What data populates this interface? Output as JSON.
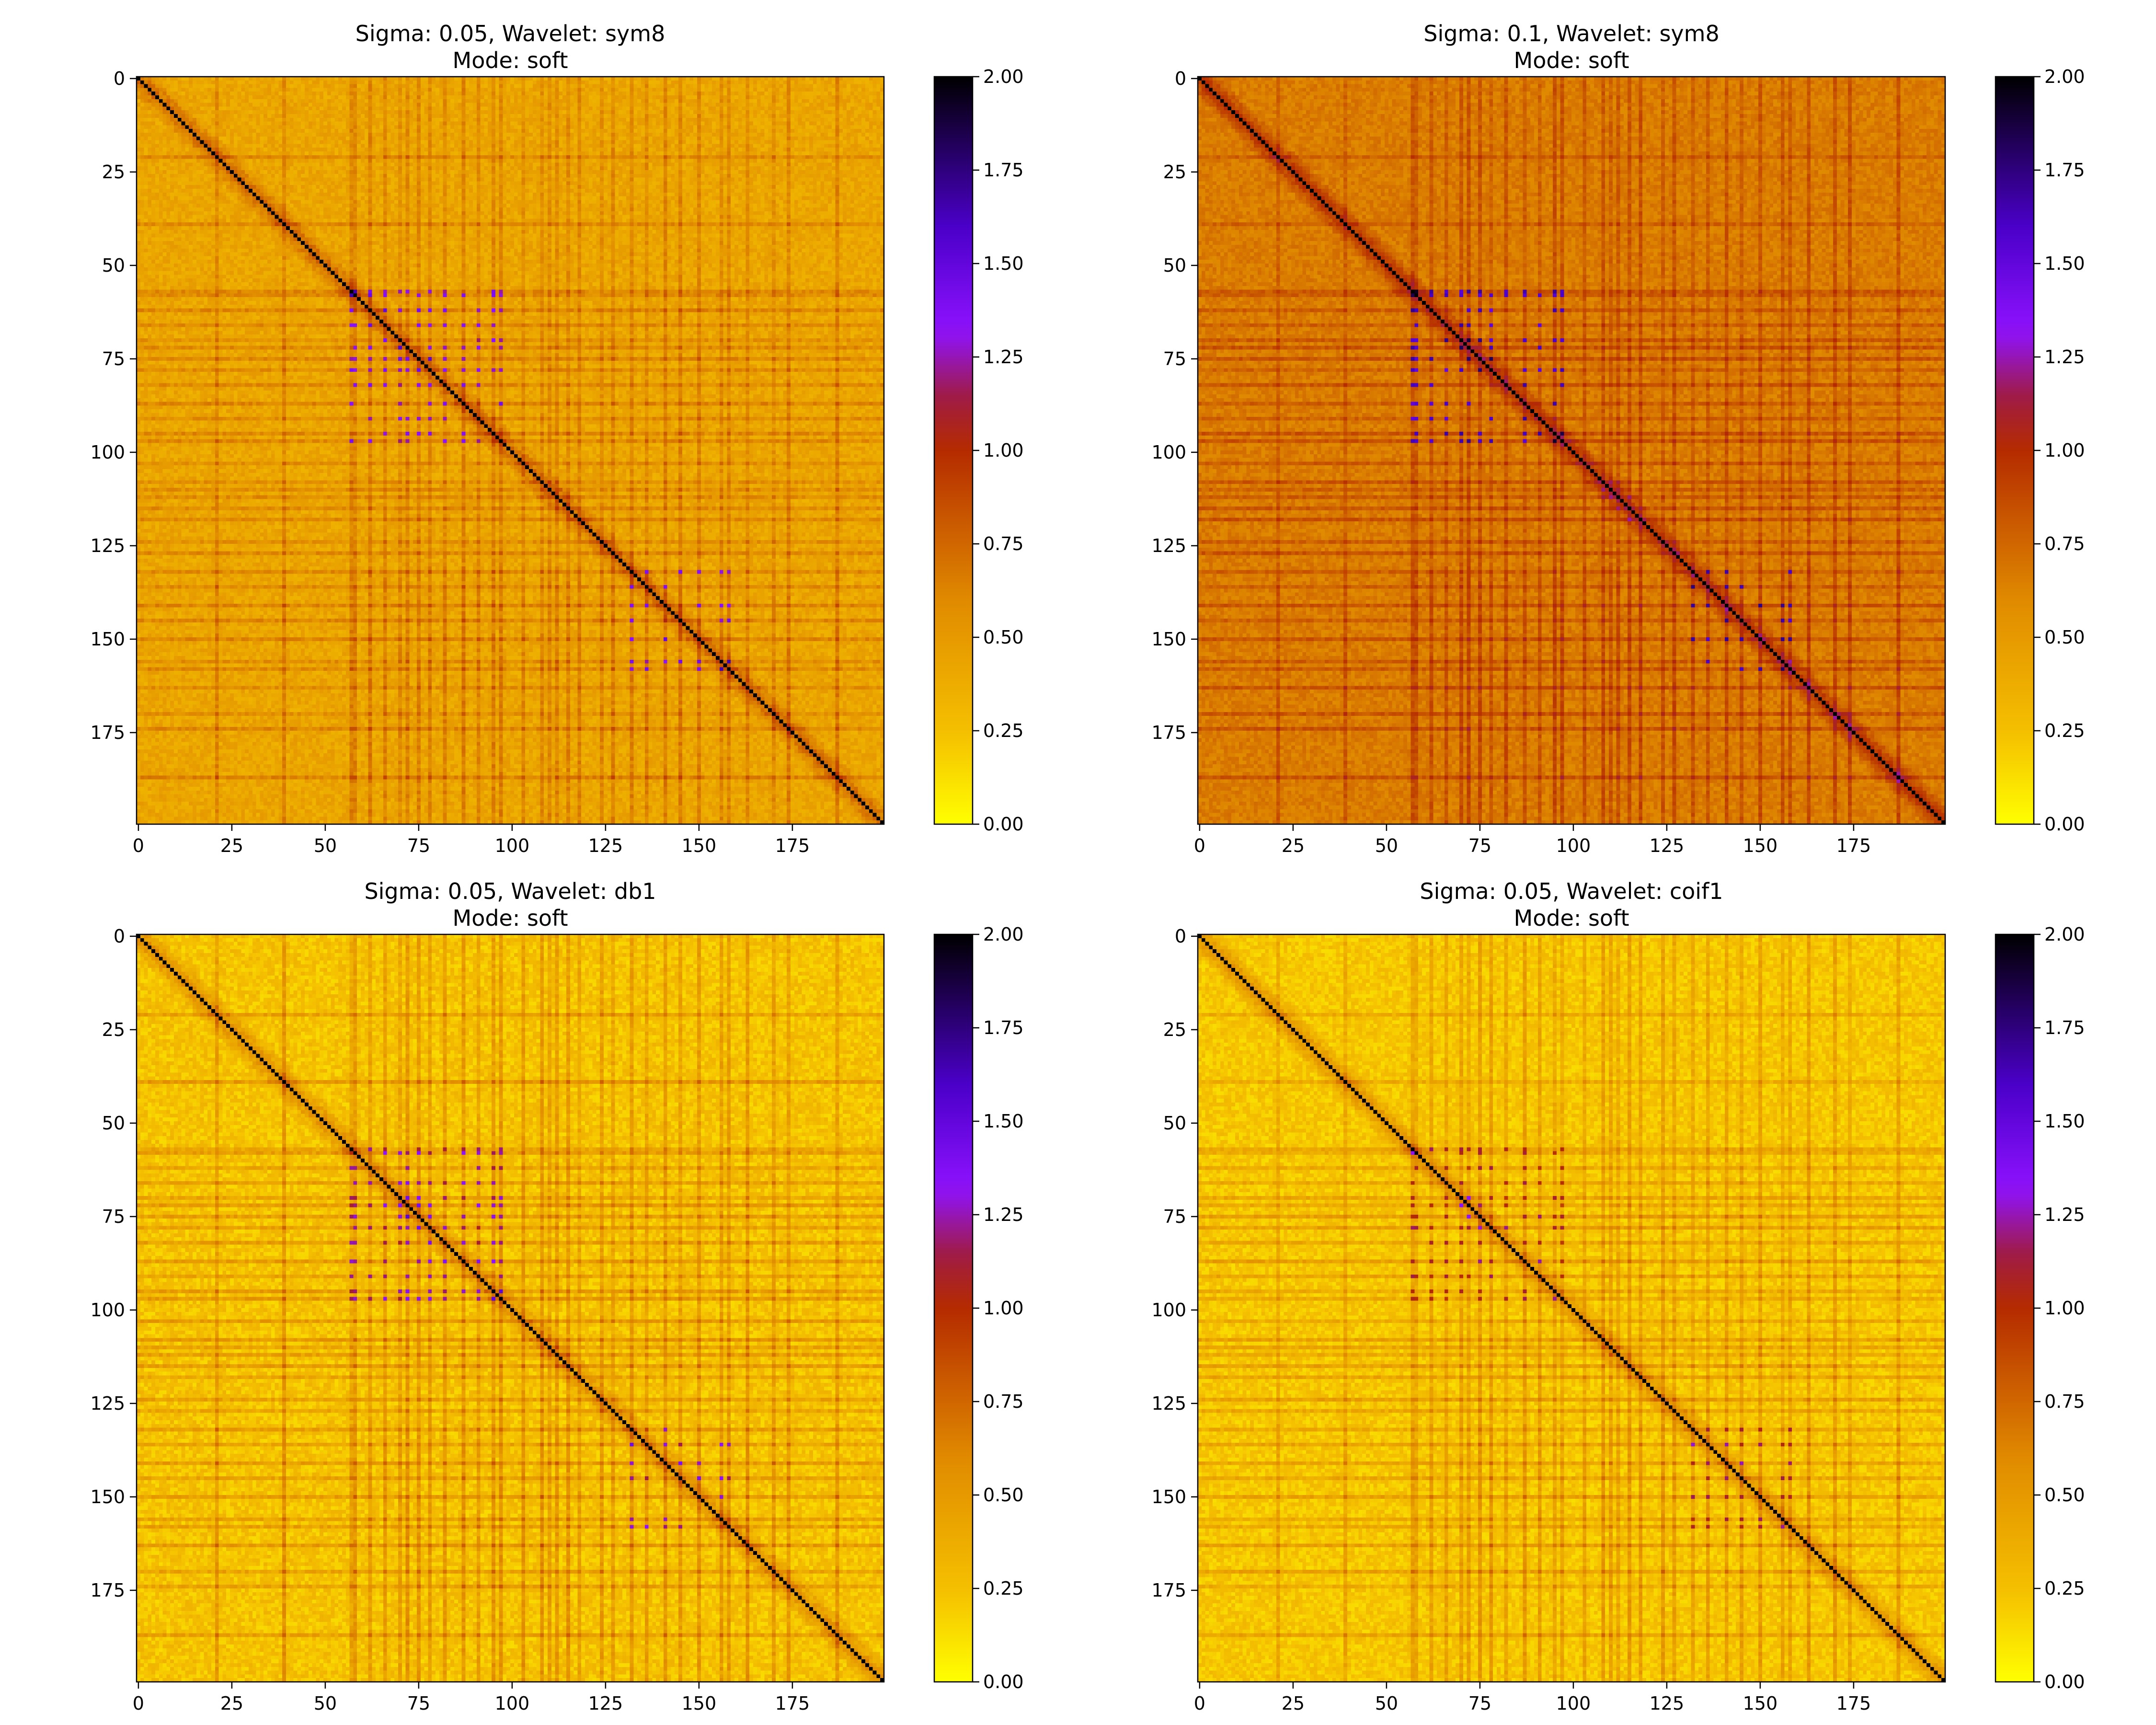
{
  "colormap": {
    "name": "gnuplot2_r",
    "stops": [
      {
        "v": 0.0,
        "c": "#ffff00"
      },
      {
        "v": 0.12,
        "c": "#f5c100"
      },
      {
        "v": 0.3,
        "c": "#e08a00"
      },
      {
        "v": 0.5,
        "c": "#b52b00"
      },
      {
        "v": 0.57,
        "c": "#a01c40"
      },
      {
        "v": 0.66,
        "c": "#8e12ff"
      },
      {
        "v": 0.8,
        "c": "#4a00c8"
      },
      {
        "v": 1.0,
        "c": "#000000"
      }
    ]
  },
  "chart_data": [
    {
      "type": "heatmap",
      "title_line1": "Sigma: 0.05, Wavelet: sym8",
      "title_line2": "Mode: soft",
      "size": 200,
      "xticks": [
        0,
        25,
        50,
        75,
        100,
        125,
        150,
        175
      ],
      "yticks": [
        0,
        25,
        50,
        75,
        100,
        125,
        150,
        175
      ],
      "clim": [
        0,
        2
      ],
      "colorbar_ticks": [
        "0.00",
        "0.25",
        "0.50",
        "0.75",
        "1.00",
        "1.25",
        "1.50",
        "1.75",
        "2.00"
      ],
      "diagonal_value": 2.0,
      "base_value": 0.42,
      "band_strength": 0.25,
      "cluster_strength": 0.55,
      "noise": 0.09,
      "seed": 11
    },
    {
      "type": "heatmap",
      "title_line1": "Sigma: 0.1, Wavelet: sym8",
      "title_line2": "Mode: soft",
      "size": 200,
      "xticks": [
        0,
        25,
        50,
        75,
        100,
        125,
        150,
        175
      ],
      "yticks": [
        0,
        25,
        50,
        75,
        100,
        125,
        150,
        175
      ],
      "clim": [
        0,
        2
      ],
      "colorbar_ticks": [
        "0.00",
        "0.25",
        "0.50",
        "0.75",
        "1.00",
        "1.25",
        "1.50",
        "1.75",
        "2.00"
      ],
      "diagonal_value": 2.0,
      "base_value": 0.66,
      "band_strength": 0.22,
      "cluster_strength": 0.65,
      "noise": 0.07,
      "seed": 23
    },
    {
      "type": "heatmap",
      "title_line1": "Sigma: 0.05, Wavelet: db1",
      "title_line2": "Mode: soft",
      "size": 200,
      "xticks": [
        0,
        25,
        50,
        75,
        100,
        125,
        150,
        175
      ],
      "yticks": [
        0,
        25,
        50,
        75,
        100,
        125,
        150,
        175
      ],
      "clim": [
        0,
        2
      ],
      "colorbar_ticks": [
        "0.00",
        "0.25",
        "0.50",
        "0.75",
        "1.00",
        "1.25",
        "1.50",
        "1.75",
        "2.00"
      ],
      "diagonal_value": 2.0,
      "base_value": 0.24,
      "band_strength": 0.32,
      "cluster_strength": 0.55,
      "noise": 0.1,
      "seed": 37
    },
    {
      "type": "heatmap",
      "title_line1": "Sigma: 0.05, Wavelet: coif1",
      "title_line2": "Mode: soft",
      "size": 200,
      "xticks": [
        0,
        25,
        50,
        75,
        100,
        125,
        150,
        175
      ],
      "yticks": [
        0,
        25,
        50,
        75,
        100,
        125,
        150,
        175
      ],
      "clim": [
        0,
        2
      ],
      "colorbar_ticks": [
        "0.00",
        "0.25",
        "0.50",
        "0.75",
        "1.00",
        "1.25",
        "1.50",
        "1.75",
        "2.00"
      ],
      "diagonal_value": 2.0,
      "base_value": 0.22,
      "band_strength": 0.3,
      "cluster_strength": 0.45,
      "noise": 0.09,
      "seed": 51
    }
  ],
  "band_indices": [
    21,
    39,
    57,
    58,
    62,
    66,
    70,
    72,
    75,
    78,
    82,
    87,
    91,
    95,
    97,
    103,
    108,
    110,
    112,
    115,
    118,
    124,
    127,
    132,
    136,
    141,
    145,
    150,
    156,
    158,
    163,
    170,
    174,
    187
  ]
}
